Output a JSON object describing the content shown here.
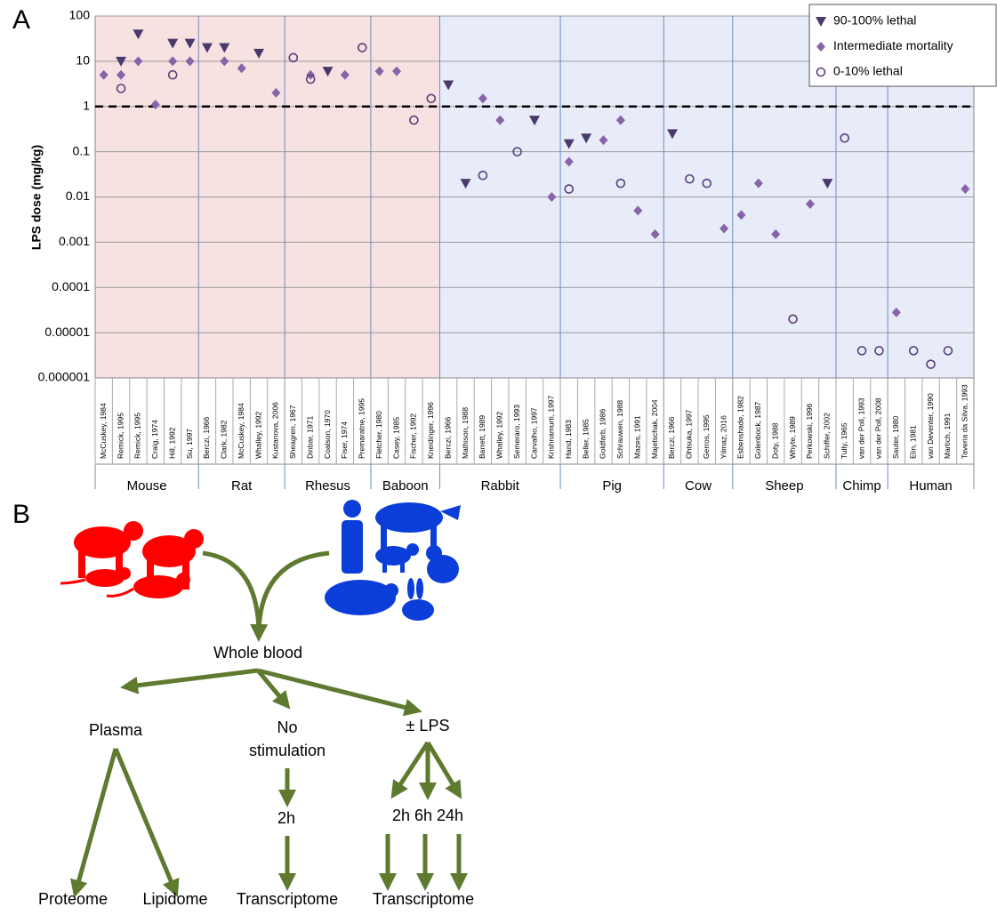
{
  "chart_data": {
    "type": "scatter",
    "panel_label": "A",
    "ylabel": "LPS dose (mg/kg)",
    "log_y": true,
    "ylim": [
      1e-06,
      100
    ],
    "yticks": [
      1e-06,
      1e-05,
      0.0001,
      0.001,
      0.01,
      0.1,
      1,
      10,
      100
    ],
    "grid": true,
    "reference_line": 1,
    "legend": "upper right",
    "groups": [
      {
        "name": "Mouse",
        "shade": "#f8e1e1",
        "categories": [
          "McCuskey, 1984",
          "Remick, 1995",
          "Remick, 1995",
          "Craig, 1974",
          "Hill, 1992",
          "Su, 1997"
        ]
      },
      {
        "name": "Rat",
        "shade": "#f8e1e1",
        "categories": [
          "Berczi, 1966",
          "Clark, 1982",
          "McCuskey, 1984",
          "Whalley, 1992",
          "Kustanova, 2006"
        ]
      },
      {
        "name": "Rhesus",
        "shade": "#f8e1e1",
        "categories": [
          "Sheagren, 1967",
          "Dinbar, 1971",
          "Coalson, 1970",
          "Fiser, 1974",
          "Premaratne, 1995"
        ]
      },
      {
        "name": "Baboon",
        "shade": "#f8e1e1",
        "categories": [
          "Fletcher, 1980",
          "Casey, 1985",
          "Fischer, 1992",
          "Kneidinger, 1996"
        ]
      },
      {
        "name": "Rabbit",
        "shade": "#e7ecf8",
        "categories": [
          "Berczi, 1966",
          "Mathison, 1988",
          "Barrett, 1989",
          "Whalley, 1992",
          "Semeraro, 1993",
          "Carvalho, 1997",
          "Krishnamurti, 1997"
        ]
      },
      {
        "name": "Pig",
        "shade": "#e7ecf8",
        "categories": [
          "Hand, 1983",
          "Beller, 1985",
          "Goldfarb, 1986",
          "Schrauwen, 1988",
          "Mazes, 1991",
          "Majetschak, 2004"
        ]
      },
      {
        "name": "Cow",
        "shade": "#e7ecf8",
        "categories": [
          "Berczi, 1966",
          "Ohtsuka, 1997",
          "Gerros, 1995",
          "Yilmaz, 2016"
        ]
      },
      {
        "name": "Sheep",
        "shade": "#e7ecf8",
        "categories": [
          "Esbenshade, 1982",
          "Golenbock, 1987",
          "Doty, 1988",
          "Whyte, 1989",
          "Perkowski, 1996",
          "Schiffer, 2002"
        ]
      },
      {
        "name": "Chimp",
        "shade": "#e7ecf8",
        "categories": [
          "Tully, 1965",
          "van der Poll, 1993",
          "van der Poll, 2008"
        ]
      },
      {
        "name": "Human",
        "shade": "#e7ecf8",
        "categories": [
          "Sauter, 1980",
          "Elin, 1981",
          "van Deventer, 1990",
          "Martich, 1991",
          "Taveria da Silva, 1993"
        ]
      }
    ],
    "series": [
      {
        "name": "90-100% lethal",
        "color": "#4a3a6c",
        "marker": "triangle-down",
        "values": [
          null,
          10,
          40,
          null,
          25,
          25,
          20,
          20,
          null,
          15,
          null,
          null,
          null,
          6,
          null,
          null,
          null,
          null,
          null,
          null,
          3,
          0.02,
          null,
          null,
          null,
          0.5,
          null,
          0.15,
          0.2,
          null,
          null,
          null,
          null,
          0.25,
          null,
          null,
          null,
          null,
          null,
          null,
          null,
          null,
          0.02,
          null,
          null,
          null,
          null,
          null,
          null,
          null,
          null
        ]
      },
      {
        "name": "Intermediate mortality",
        "color": "#8763a8",
        "marker": "diamond",
        "values": [
          5,
          5,
          10,
          1.1,
          10,
          10,
          null,
          10,
          7,
          null,
          2,
          null,
          5,
          null,
          5,
          null,
          6,
          6,
          null,
          null,
          null,
          null,
          1.5,
          0.5,
          null,
          null,
          0.01,
          0.06,
          null,
          0.18,
          0.5,
          0.005,
          0.0015,
          null,
          null,
          null,
          0.002,
          0.004,
          0.02,
          0.0015,
          null,
          0.007,
          null,
          null,
          null,
          null,
          2.8e-05,
          null,
          null,
          null,
          0.015
        ]
      },
      {
        "name": "0-10% lethal",
        "color": "#5b3f7c",
        "marker": "circle-open",
        "values": [
          null,
          2.5,
          null,
          null,
          5,
          null,
          null,
          null,
          null,
          null,
          null,
          12,
          4,
          null,
          null,
          20,
          null,
          null,
          0.5,
          1.5,
          null,
          null,
          0.03,
          null,
          0.1,
          null,
          null,
          0.015,
          null,
          null,
          0.02,
          null,
          null,
          null,
          0.025,
          0.02,
          null,
          null,
          null,
          null,
          2e-05,
          null,
          null,
          0.2,
          4e-06,
          4e-06,
          null,
          4e-06,
          2e-06,
          4e-06,
          null
        ]
      }
    ]
  },
  "diagram": {
    "panel_label": "B",
    "nodes": [
      "Whole blood",
      "Plasma",
      "No",
      "stimulation",
      "± LPS",
      "2h",
      "2h 6h 24h",
      "Proteome",
      "Lipidome",
      "Transcriptome",
      "Transcriptome"
    ]
  }
}
